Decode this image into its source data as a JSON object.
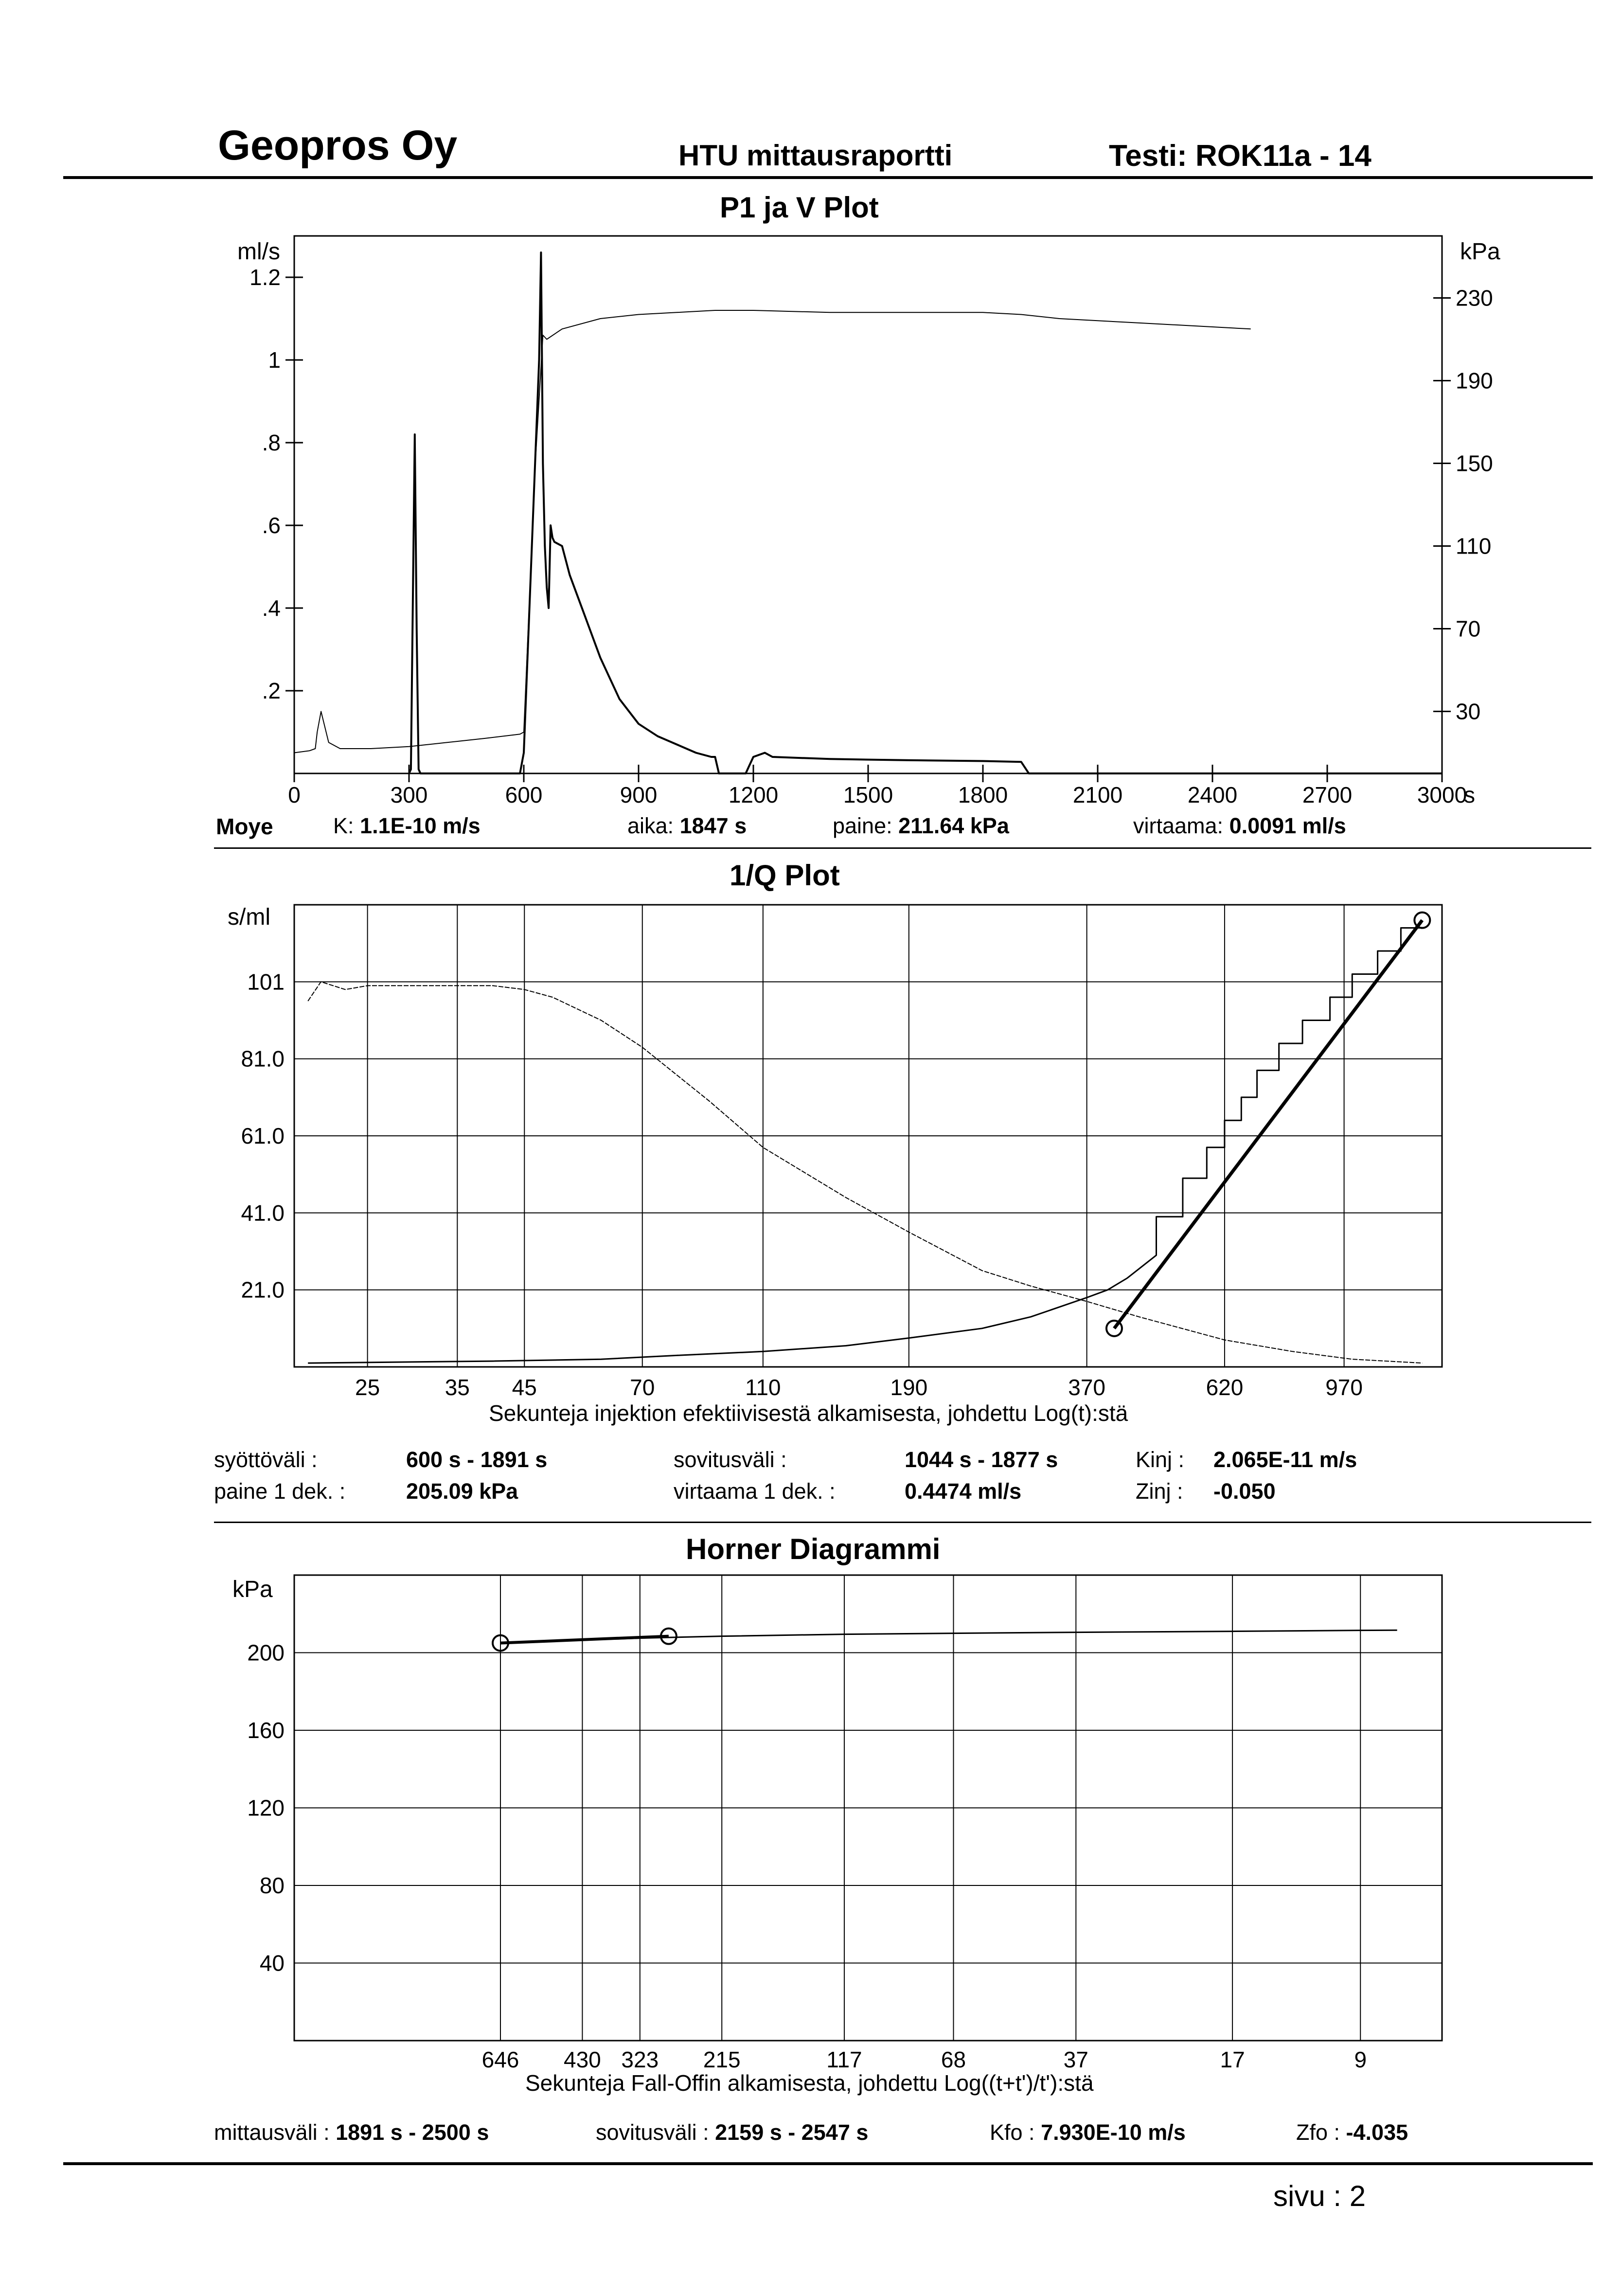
{
  "header": {
    "company": "Geopros Oy",
    "report": "HTU mittausraportti",
    "test": "Testi: ROK11a - 14"
  },
  "footer": {
    "page": "sivu : 2"
  },
  "plot1": {
    "caption": "Moye",
    "info": [
      {
        "label": "K:",
        "value": "1.1E-10 m/s"
      },
      {
        "label": "aika:",
        "value": "1847 s"
      },
      {
        "label": "paine:",
        "value": "211.64 kPa"
      },
      {
        "label": "virtaama:",
        "value": "0.0091 ml/s"
      }
    ]
  },
  "plot2": {
    "info": [
      {
        "label": "syöttöväli :",
        "value": "600 s - 1891 s"
      },
      {
        "label": "sovitusväli :",
        "value": "1044 s - 1877 s"
      },
      {
        "label": "Kinj :",
        "value": "2.065E-11 m/s"
      },
      {
        "label": "paine 1 dek. :",
        "value": "205.09 kPa"
      },
      {
        "label": "virtaama 1 dek. :",
        "value": "0.4474 ml/s"
      },
      {
        "label": "Zinj :",
        "value": "-0.050"
      }
    ]
  },
  "plot3": {
    "info": [
      {
        "label": "mittausväli :",
        "value": "1891 s - 2500 s"
      },
      {
        "label": "sovitusväli :",
        "value": "2159 s - 2547 s"
      },
      {
        "label": "Kfo :",
        "value": "7.930E-10 m/s"
      },
      {
        "label": "Zfo :",
        "value": "-4.035"
      }
    ]
  },
  "chart_data": [
    {
      "type": "line",
      "title": "P1 ja V Plot",
      "ylabel": "ml/s",
      "y2label": "kPa",
      "xunit": "s",
      "xlim": [
        0,
        3000
      ],
      "ylim": [
        0,
        1.3
      ],
      "y2lim": [
        0,
        260
      ],
      "xticks": [
        0,
        300,
        600,
        900,
        1200,
        1500,
        1800,
        2100,
        2400,
        2700,
        3000
      ],
      "xtick_labels": [
        "0",
        "300",
        "600",
        "900",
        "1200",
        "1500",
        "1800",
        "2100",
        "2400",
        "2700",
        "3000"
      ],
      "yticks": [
        0.2,
        0.4,
        0.6,
        0.8,
        1.0,
        1.2
      ],
      "ytick_labels": [
        ".2",
        ".4",
        ".6",
        ".8",
        "1",
        "1.2"
      ],
      "y2ticks": [
        30,
        70,
        110,
        150,
        190,
        230
      ],
      "y2tick_labels": [
        "30",
        "70",
        "110",
        "150",
        "190",
        "230"
      ],
      "grid": false,
      "series": [
        {
          "axis": "y2",
          "x": [
            0,
            40,
            55,
            60,
            70,
            90,
            120,
            200,
            300,
            400,
            500,
            590,
            600,
            630,
            650,
            660,
            700,
            800,
            900,
            1000,
            1100,
            1200,
            1400,
            1600,
            1800,
            1900,
            2000,
            2200,
            2400,
            2500
          ],
          "y": [
            10,
            11,
            12,
            20,
            30,
            15,
            12,
            12,
            13,
            15,
            17,
            19,
            20,
            150,
            212,
            210,
            215,
            220,
            222,
            223,
            224,
            224,
            223,
            223,
            223,
            222,
            220,
            218,
            216,
            215
          ]
        },
        {
          "axis": "y",
          "x": [
            300,
            305,
            315,
            320,
            325,
            330,
            590,
            600,
            640,
            645,
            650,
            655,
            660,
            665,
            670,
            675,
            680,
            700,
            720,
            760,
            800,
            850,
            900,
            950,
            1000,
            1050,
            1090,
            1100,
            1110,
            1180,
            1190,
            1200,
            1230,
            1250,
            1400,
            1600,
            1800,
            1900,
            1920,
            3000
          ],
          "y": [
            0,
            0.01,
            0.82,
            0.35,
            0.01,
            0,
            0,
            0.05,
            1.0,
            1.26,
            0.75,
            0.55,
            0.45,
            0.4,
            0.6,
            0.57,
            0.56,
            0.55,
            0.48,
            0.38,
            0.28,
            0.18,
            0.12,
            0.09,
            0.07,
            0.05,
            0.04,
            0.04,
            0,
            0,
            0.02,
            0.04,
            0.05,
            0.04,
            0.035,
            0.032,
            0.03,
            0.028,
            0,
            0
          ]
        }
      ]
    },
    {
      "type": "line",
      "title": "1/Q Plot",
      "ylabel": "s/ml",
      "xlabel": "Sekunteja injektion efektiivisestä alkamisesta, johdettu Log(t):stä",
      "xscale": "log",
      "xlim": [
        19,
        1400
      ],
      "ylim": [
        1,
        121
      ],
      "xticks": [
        25,
        35,
        45,
        70,
        110,
        190,
        370,
        620,
        970
      ],
      "xtick_labels": [
        "25",
        "35",
        "45",
        "70",
        "110",
        "190",
        "370",
        "620",
        "970"
      ],
      "yticks": [
        21,
        41,
        61,
        81,
        101
      ],
      "ytick_labels": [
        "21.0",
        "41.0",
        "61.0",
        "81.0",
        "101"
      ],
      "grid": true,
      "series": [
        {
          "name": "dashed",
          "x": [
            20,
            21,
            23,
            25,
            30,
            35,
            40,
            45,
            50,
            60,
            70,
            90,
            110,
            150,
            190,
            250,
            300,
            370,
            450,
            620,
            800,
            1000,
            1300
          ],
          "y": [
            96,
            101,
            99,
            100,
            100,
            100,
            100,
            99,
            97,
            91,
            84,
            70,
            58,
            45,
            36,
            26,
            22,
            18,
            14,
            8,
            5,
            3,
            2
          ]
        },
        {
          "name": "curve",
          "x": [
            20,
            40,
            60,
            80,
            110,
            150,
            190,
            250,
            300,
            370,
            400,
            430
          ],
          "y": [
            2,
            2.5,
            3,
            4,
            5,
            6.5,
            8.5,
            11,
            14,
            19,
            21,
            24
          ]
        },
        {
          "name": "steps",
          "x": [
            430,
            480,
            480,
            530,
            530,
            580,
            580,
            620,
            620,
            660,
            660,
            700,
            700,
            760,
            760,
            830,
            830,
            920,
            920,
            1000,
            1000,
            1100,
            1100,
            1200,
            1200,
            1300
          ],
          "y": [
            24,
            30,
            40,
            40,
            50,
            50,
            58,
            58,
            65,
            65,
            71,
            71,
            78,
            78,
            85,
            85,
            91,
            91,
            97,
            97,
            103,
            103,
            109,
            109,
            115,
            115
          ]
        },
        {
          "name": "fit",
          "x": [
            410,
            1300
          ],
          "y": [
            11,
            117
          ]
        }
      ],
      "markers": [
        {
          "x": 410,
          "y": 11
        },
        {
          "x": 1300,
          "y": 117
        }
      ]
    },
    {
      "type": "line",
      "title": "Horner Diagrammi",
      "ylabel": "kPa",
      "xlabel": "Sekunteja Fall-Offin alkamisesta, johdettu Log((t+t')/t'):stä",
      "xscale": "log-reversed",
      "xlim": [
        1800,
        6
      ],
      "ylim": [
        0,
        240
      ],
      "xticks": [
        646,
        430,
        323,
        215,
        117,
        68,
        37,
        17,
        9
      ],
      "xtick_labels": [
        "646",
        "430",
        "323",
        "215",
        "117",
        "68",
        "37",
        "17",
        "9"
      ],
      "yticks": [
        40,
        80,
        120,
        160,
        200
      ],
      "ytick_labels": [
        "40",
        "80",
        "120",
        "160",
        "200"
      ],
      "grid": true,
      "series": [
        {
          "name": "data",
          "x": [
            646,
            430,
            323,
            215,
            117,
            68,
            37,
            17,
            9,
            7.5
          ],
          "y": [
            205,
            206.5,
            207.5,
            208.5,
            209.5,
            210,
            210.5,
            211,
            211.5,
            211.6
          ]
        },
        {
          "name": "fit",
          "x": [
            646,
            280
          ],
          "y": [
            205,
            208.5
          ]
        }
      ],
      "markers": [
        {
          "x": 646,
          "y": 205
        },
        {
          "x": 280,
          "y": 208.5
        }
      ]
    }
  ]
}
